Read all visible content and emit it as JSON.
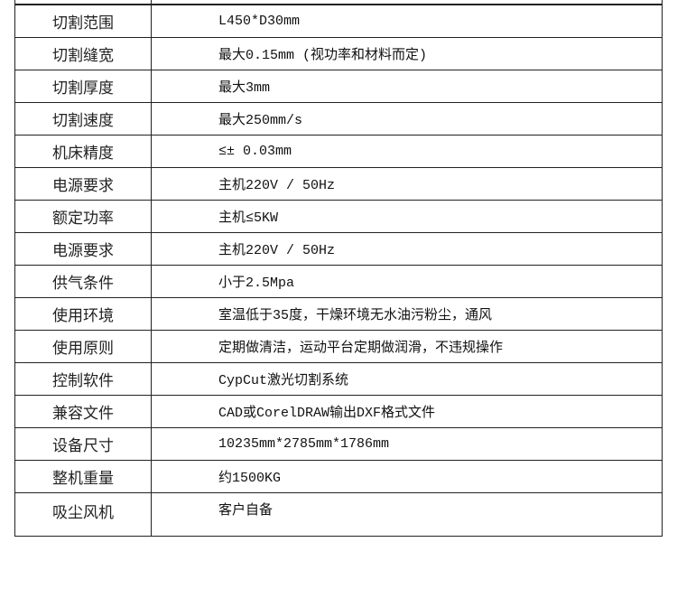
{
  "specs": [
    {
      "label": "切割范围",
      "value": "L450*D30mm"
    },
    {
      "label": "切割缝宽",
      "value": "最大0.15mm (视功率和材料而定)"
    },
    {
      "label": "切割厚度",
      "value": "最大3mm"
    },
    {
      "label": "切割速度",
      "value": "最大250mm/s"
    },
    {
      "label": "机床精度",
      "value": "≤± 0.03mm"
    },
    {
      "label": "电源要求",
      "value": "主机220V / 50Hz"
    },
    {
      "label": "额定功率",
      "value": "主机≤5KW"
    },
    {
      "label": "电源要求",
      "value": "主机220V / 50Hz"
    },
    {
      "label": "供气条件",
      "value": "小于2.5Mpa"
    },
    {
      "label": "使用环境",
      "value": "室温低于35度，干燥环境无水油污粉尘，通风"
    },
    {
      "label": "使用原则",
      "value": "定期做清洁，运动平台定期做润滑，不违规操作"
    },
    {
      "label": "控制软件",
      "value": "CypCut激光切割系统"
    },
    {
      "label": "兼容文件",
      "value": "CAD或CorelDRAW输出DXF格式文件"
    },
    {
      "label": "设备尺寸",
      "value": "10235mm*2785mm*1786mm"
    },
    {
      "label": "整机重量",
      "value": "约1500KG"
    },
    {
      "label": "吸尘风机",
      "value": "客户自备"
    }
  ]
}
